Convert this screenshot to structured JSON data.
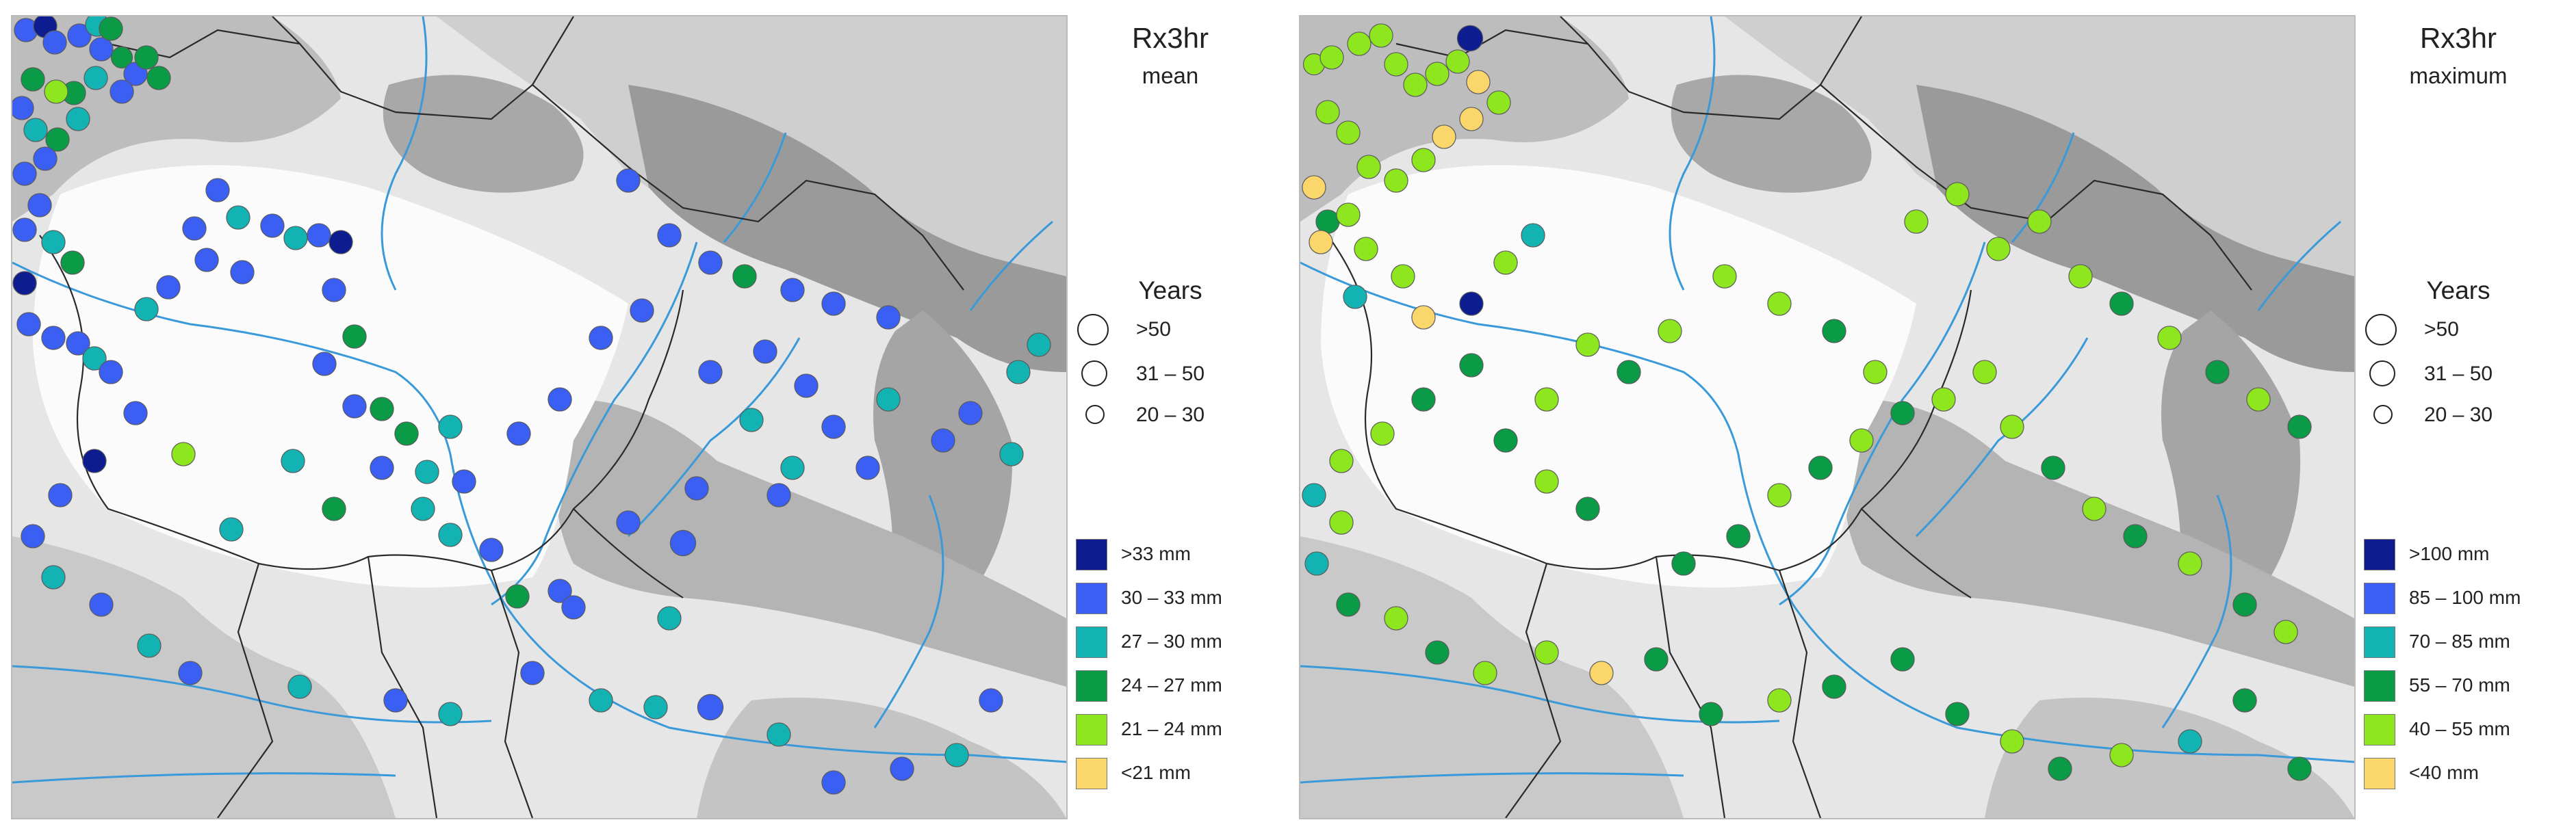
{
  "panels": [
    {
      "index_label": "Rx3hr",
      "stat_label": "mean",
      "years_title": "Years",
      "size_legend": [
        ">50",
        "31 – 50",
        "20 – 30"
      ],
      "color_legend": [
        {
          "label": ">33 mm",
          "color": "#0d1c8f"
        },
        {
          "label": "30 – 33 mm",
          "color": "#3a5ff2"
        },
        {
          "label": "27 – 30 mm",
          "color": "#14b3b3"
        },
        {
          "label": "24 – 27 mm",
          "color": "#0b9a45"
        },
        {
          "label": "21 – 24 mm",
          "color": "#8ee61e"
        },
        {
          "label": "<21 mm",
          "color": "#fbd66b"
        }
      ]
    },
    {
      "index_label": "Rx3hr",
      "stat_label": "maximum",
      "years_title": "Years",
      "size_legend": [
        ">50",
        "31 – 50",
        "20 – 30"
      ],
      "color_legend": [
        {
          "label": ">100 mm",
          "color": "#0d1c8f"
        },
        {
          "label": "85 – 100 mm",
          "color": "#3a5ff2"
        },
        {
          "label": "70 – 85 mm",
          "color": "#14b3b3"
        },
        {
          "label": "55 – 70 mm",
          "color": "#0b9a45"
        },
        {
          "label": "40 – 55 mm",
          "color": "#8ee61e"
        },
        {
          "label": "<40 mm",
          "color": "#fbd66b"
        }
      ]
    }
  ]
}
